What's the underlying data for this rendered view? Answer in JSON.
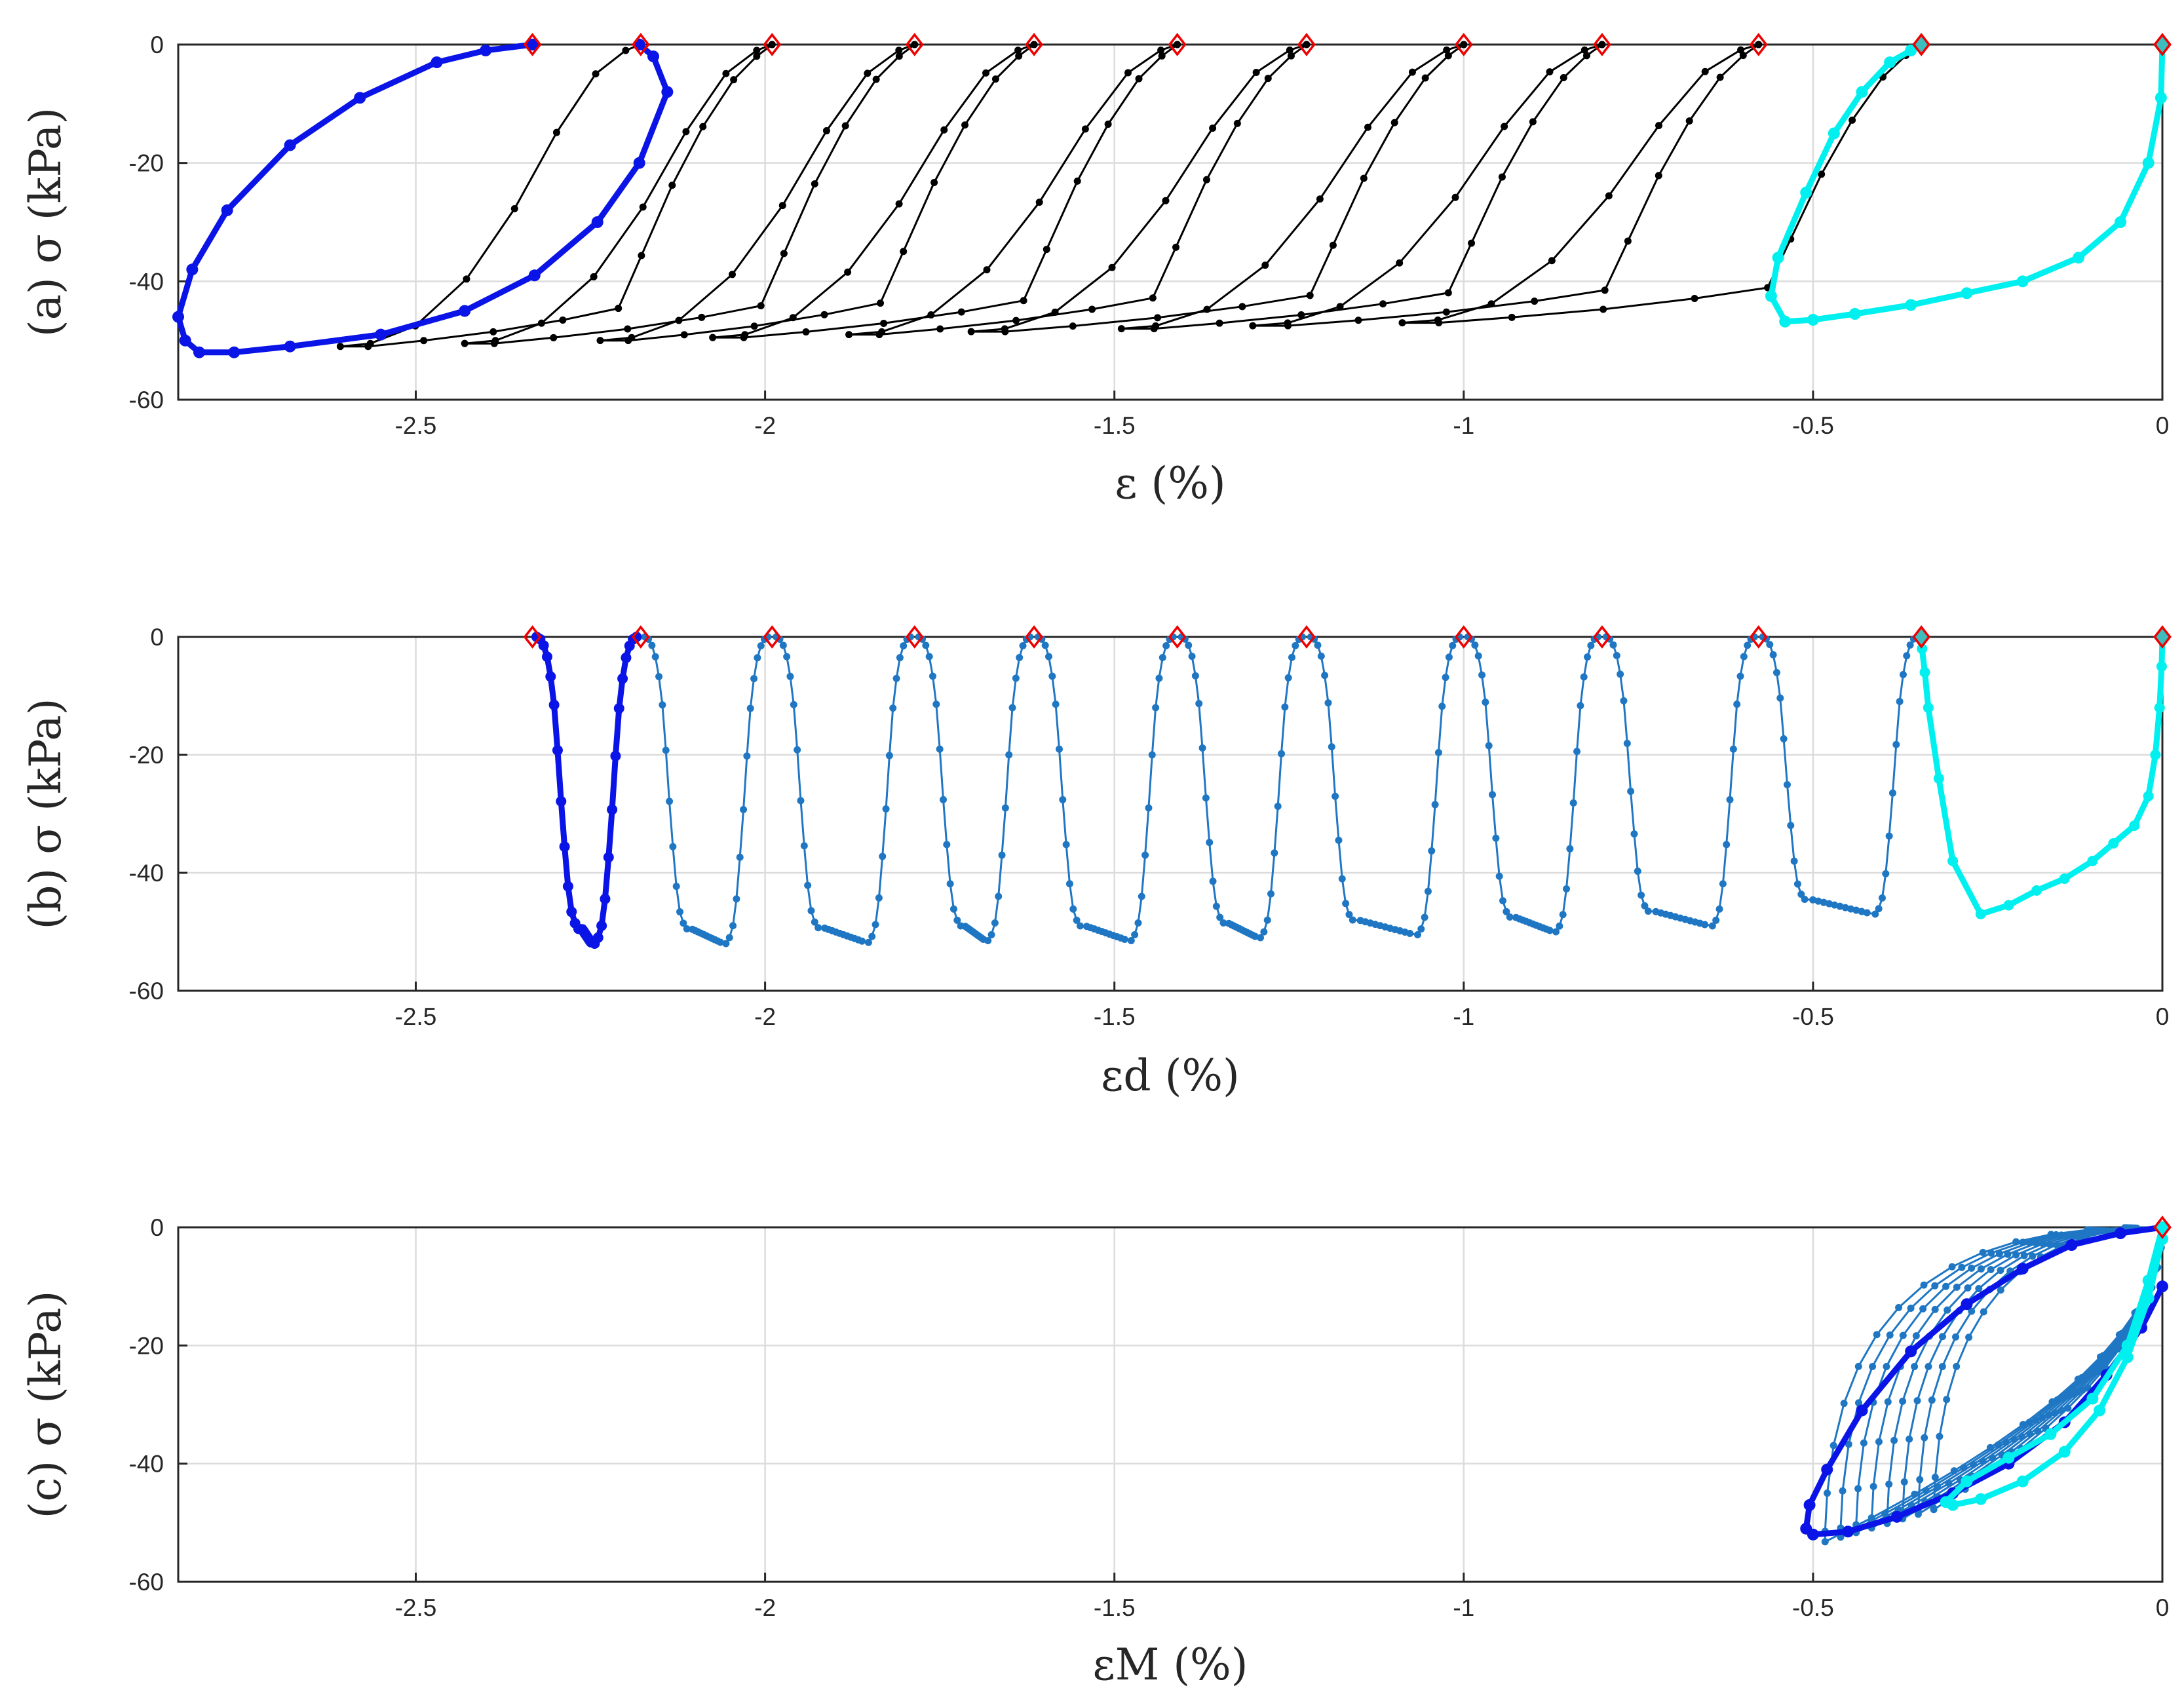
{
  "colors": {
    "all_cycles": "#000000",
    "all_cycles_b": "#1f77c4",
    "first_cycle": "#0a14e6",
    "last_cycle": "#00f0f0",
    "marker": "#ee0000",
    "grid": "#dcdcdc"
  },
  "chart_data": [
    {
      "panel": "a",
      "type": "line",
      "ylabel": "(a) σ (kPa)",
      "xlabel": "ε (%)",
      "xlim": [
        -2.84,
        0
      ],
      "ylim": [
        -60,
        0
      ],
      "xticks": [
        -2.5,
        -2,
        -1.5,
        -1,
        -0.5,
        0
      ],
      "xtick_labels": [
        "-2.5",
        "-2",
        "-1.5",
        "-1",
        "-0.5",
        "0"
      ],
      "yticks": [
        0,
        -20,
        -40,
        -60
      ],
      "ytick_labels": [
        "0",
        "-20",
        "-40",
        "-60"
      ],
      "grid": true,
      "markers_x": [
        0,
        -0.345,
        -0.578,
        -0.802,
        -1.0,
        -1.225,
        -1.41,
        -1.615,
        -1.786,
        -1.99,
        -2.178,
        -2.333
      ],
      "highlight_first": {
        "x": [
          -2.333,
          -2.4,
          -2.47,
          -2.58,
          -2.68,
          -2.77,
          -2.82,
          -2.84,
          -2.83,
          -2.81,
          -2.76,
          -2.68,
          -2.55,
          -2.43,
          -2.33,
          -2.24,
          -2.18,
          -2.14,
          -2.16,
          -2.18
        ],
        "y": [
          0,
          -1,
          -3,
          -9,
          -17,
          -28,
          -38,
          -46,
          -50,
          -52,
          -52,
          -51,
          -49,
          -45,
          -39,
          -30,
          -20,
          -8,
          -2,
          0
        ]
      },
      "highlight_last": {
        "x": [
          0,
          -0.002,
          -0.02,
          -0.06,
          -0.12,
          -0.2,
          -0.28,
          -0.36,
          -0.44,
          -0.5,
          -0.54,
          -0.56,
          -0.55,
          -0.51,
          -0.47,
          -0.43,
          -0.39,
          -0.36,
          -0.345
        ],
        "y": [
          0,
          -9,
          -20,
          -30,
          -36,
          -40,
          -42,
          -44,
          -45.5,
          -46.5,
          -46.8,
          -42.5,
          -36,
          -25,
          -15,
          -8,
          -3,
          -1,
          0
        ]
      }
    },
    {
      "panel": "b",
      "type": "line",
      "ylabel": "(b) σ (kPa)",
      "xlabel": "εd (%)",
      "xlim": [
        -2.84,
        0
      ],
      "ylim": [
        -60,
        0
      ],
      "xticks": [
        -2.5,
        -2,
        -1.5,
        -1,
        -0.5,
        0
      ],
      "xtick_labels": [
        "-2.5",
        "-2",
        "-1.5",
        "-1",
        "-0.5",
        "0"
      ],
      "yticks": [
        0,
        -20,
        -40,
        -60
      ],
      "ytick_labels": [
        "0",
        "-20",
        "-40",
        "-60"
      ],
      "grid": true,
      "markers_x": [
        0,
        -0.345,
        -0.578,
        -0.802,
        -1.0,
        -1.225,
        -1.41,
        -1.615,
        -1.786,
        -1.99,
        -2.178,
        -2.333
      ],
      "trough_depths": [
        47,
        49,
        50,
        50.5,
        51,
        51.5,
        51.5,
        51.8,
        52,
        52,
        52.2
      ]
    },
    {
      "panel": "c",
      "type": "line",
      "ylabel": "(c) σ (kPa)",
      "xlabel": "εM (%)",
      "xlim": [
        -2.84,
        0
      ],
      "ylim": [
        -60,
        0
      ],
      "xticks": [
        -2.5,
        -2,
        -1.5,
        -1,
        -0.5,
        0
      ],
      "xtick_labels": [
        "-2.5",
        "-2",
        "-1.5",
        "-1",
        "-0.5",
        "0"
      ],
      "yticks": [
        0,
        -20,
        -40,
        -60
      ],
      "ytick_labels": [
        "0",
        "-20",
        "-40",
        "-60"
      ],
      "grid": true,
      "markers_x": [
        0
      ],
      "first_loop": {
        "x": [
          0,
          -0.06,
          -0.13,
          -0.2,
          -0.28,
          -0.36,
          -0.43,
          -0.48,
          -0.505,
          -0.51,
          -0.5,
          -0.45,
          -0.38,
          -0.3,
          -0.22,
          -0.14,
          -0.08,
          -0.03,
          0
        ],
        "y": [
          0,
          -1,
          -3,
          -7,
          -13,
          -21,
          -31,
          -41,
          -47,
          -51,
          -52,
          -51.5,
          -49,
          -45,
          -40,
          -33,
          -25,
          -17,
          -10
        ]
      },
      "last_loop": {
        "x": [
          0,
          -0.02,
          -0.05,
          -0.1,
          -0.16,
          -0.22,
          -0.28,
          -0.31,
          -0.3,
          -0.26,
          -0.2,
          -0.14,
          -0.09,
          -0.05,
          -0.02,
          0
        ],
        "y": [
          0,
          -9,
          -20,
          -29,
          -35,
          -39,
          -43,
          -46.5,
          -47,
          -46,
          -43,
          -38,
          -31,
          -22,
          -12,
          -2
        ]
      }
    }
  ]
}
